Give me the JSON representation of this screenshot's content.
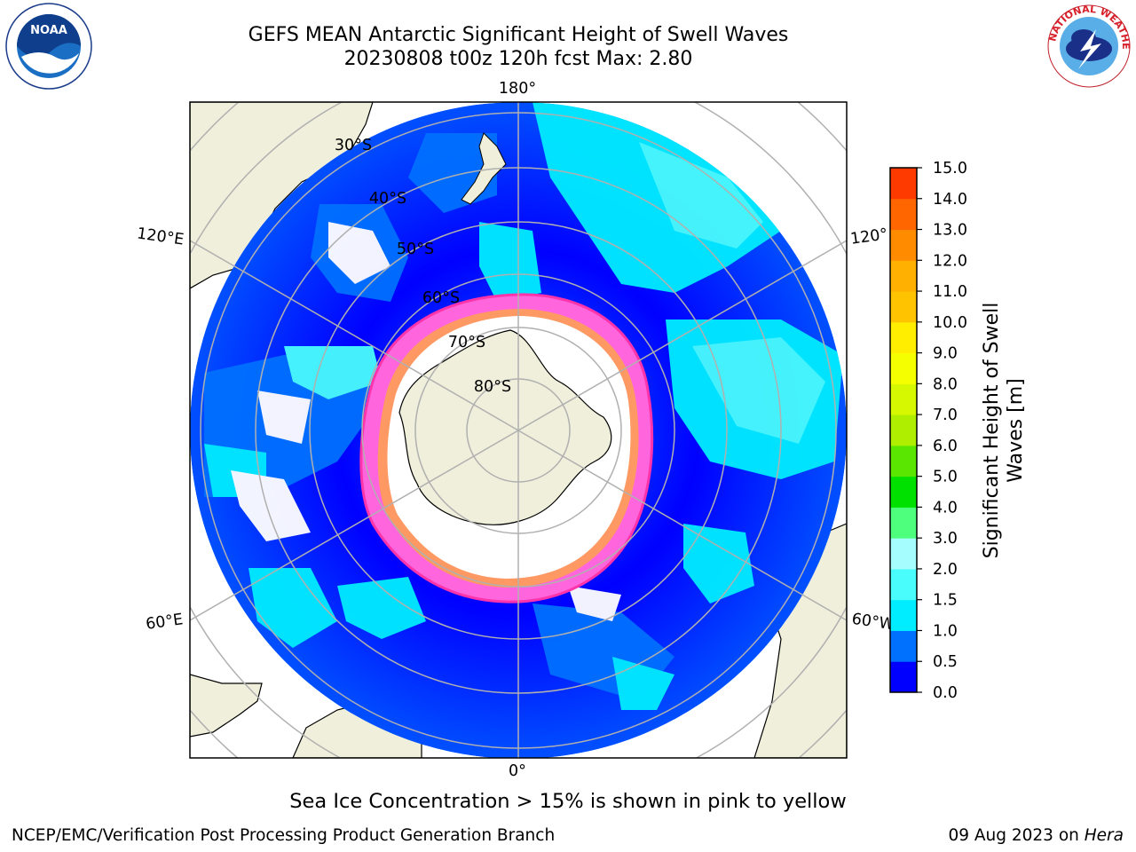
{
  "title_line1": "GEFS MEAN Antarctic Significant Height of Swell Waves",
  "title_line2": "20230808 t00z 120h fcst   Max: 2.80",
  "note": "Sea Ice Concentration > 15% is shown in pink to yellow",
  "credit": "NCEP/EMC/Verification Post Processing Product Generation Branch",
  "stamp_date": "09 Aug 2023 on ",
  "stamp_host": "Hera",
  "noaa_logo_text": "NOAA",
  "nws_logo_text": "NATIONAL WEATHER SERVICE",
  "map": {
    "longitude_labels": [
      "180°",
      "120°E",
      "120°",
      "60°E",
      "60°W",
      "0°"
    ],
    "latitude_labels": [
      "30°S",
      "40°S",
      "50°S",
      "60°S",
      "70°S",
      "80°S"
    ]
  },
  "colorbar": {
    "label_line1": "Significant Height of Swell",
    "label_line2": "Waves [m]",
    "ticks": [
      "0.0",
      "0.5",
      "1.0",
      "1.5",
      "2.0",
      "3.0",
      "4.0",
      "5.0",
      "6.0",
      "7.0",
      "8.0",
      "9.0",
      "10.0",
      "11.0",
      "12.0",
      "13.0",
      "14.0",
      "15.0"
    ],
    "colors": [
      "#0000ff",
      "#0070ff",
      "#00ecff",
      "#49fdfc",
      "#a6fdfd",
      "#4dff7c",
      "#00e100",
      "#5ae600",
      "#b0ee00",
      "#d6f800",
      "#f6ff00",
      "#ffee00",
      "#ffc300",
      "#ffb000",
      "#ff8c00",
      "#ff6600",
      "#ff3a00",
      "#ff0000"
    ]
  }
}
